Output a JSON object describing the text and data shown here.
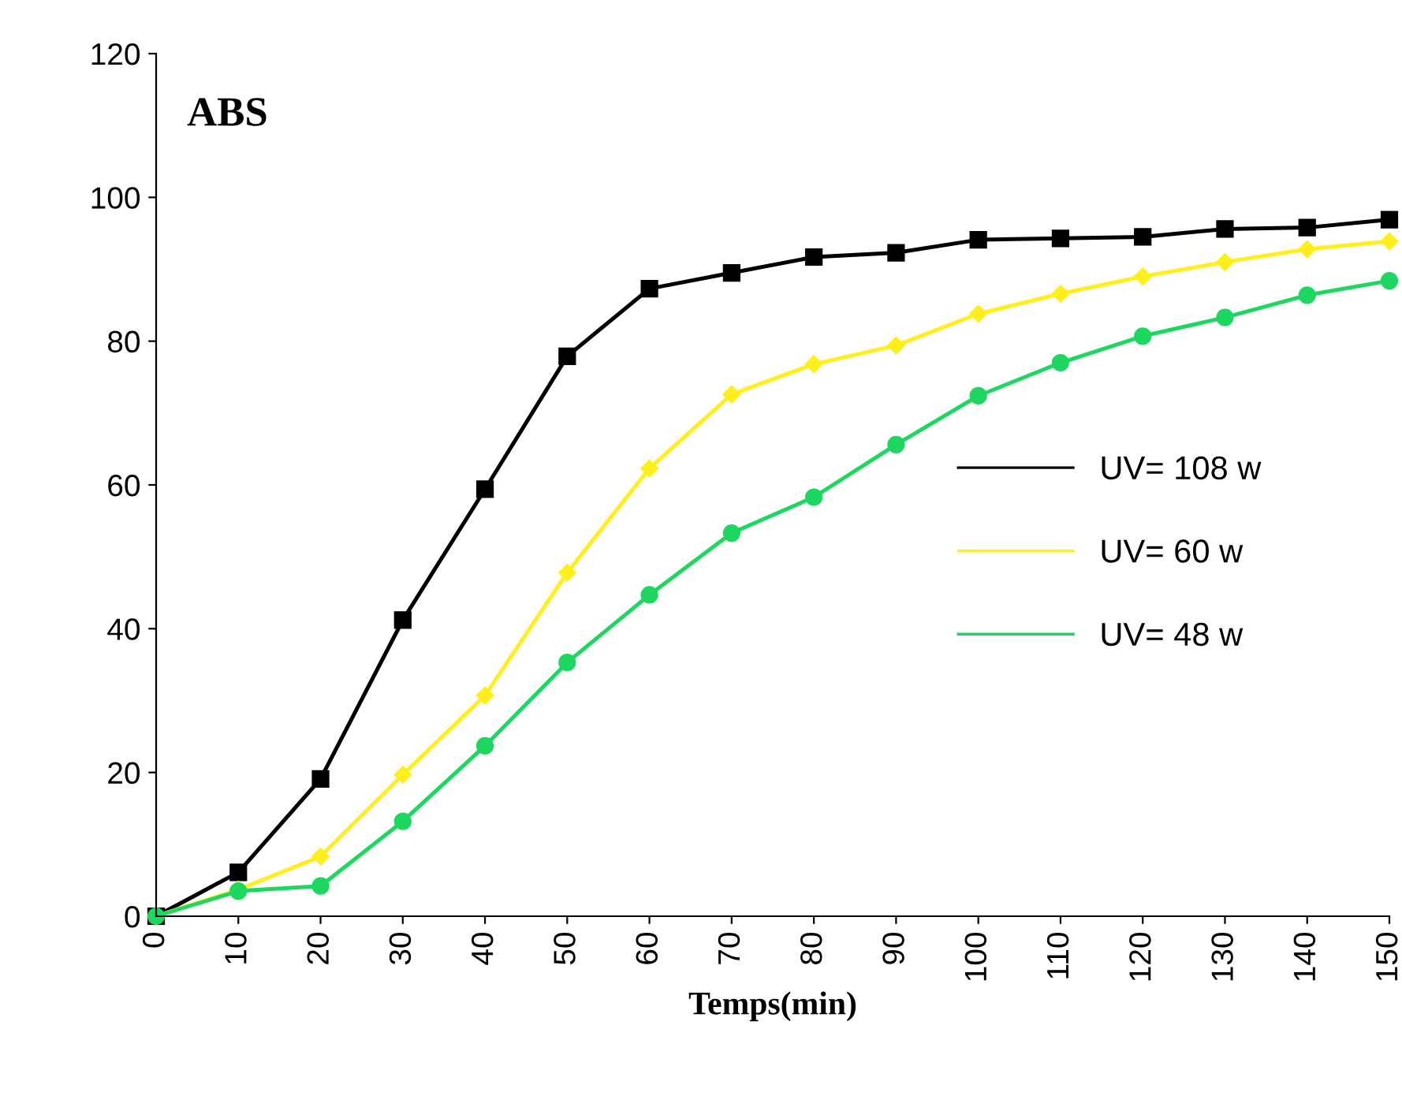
{
  "chart_data": {
    "type": "line",
    "ylabel": "ABS",
    "xlabel": "Temps(min)",
    "x": [
      0,
      10,
      20,
      30,
      40,
      50,
      60,
      70,
      80,
      90,
      100,
      110,
      120,
      130,
      140,
      150
    ],
    "series": [
      {
        "name": "UV= 108 w",
        "color": "#000000",
        "marker": "square",
        "values": [
          0,
          6.1,
          19.1,
          41.2,
          59.4,
          77.9,
          87.3,
          89.5,
          91.7,
          92.3,
          94.1,
          94.3,
          94.5,
          95.6,
          95.8,
          96.9
        ]
      },
      {
        "name": "UV= 60 w",
        "color": "#ffef1a",
        "marker": "diamond",
        "values": [
          0,
          3.7,
          8.3,
          19.7,
          30.7,
          47.8,
          62.3,
          72.6,
          76.8,
          79.4,
          83.8,
          86.6,
          89.0,
          91.0,
          92.8,
          93.9
        ]
      },
      {
        "name": "UV= 48 w",
        "color": "#1ed760",
        "marker": "circle",
        "values": [
          0,
          3.5,
          4.2,
          13.2,
          23.7,
          35.3,
          44.7,
          53.3,
          58.3,
          65.6,
          72.4,
          77.0,
          80.7,
          83.3,
          86.4,
          88.4
        ]
      }
    ],
    "xlim": [
      0,
      150
    ],
    "xticks": [
      0,
      10,
      20,
      30,
      40,
      50,
      60,
      70,
      80,
      90,
      100,
      110,
      120,
      130,
      140,
      150
    ],
    "ylim": [
      0,
      120
    ],
    "yticks": [
      0,
      20,
      40,
      60,
      80,
      100,
      120
    ],
    "grid": false,
    "legend": "right",
    "line_style": "solid"
  }
}
